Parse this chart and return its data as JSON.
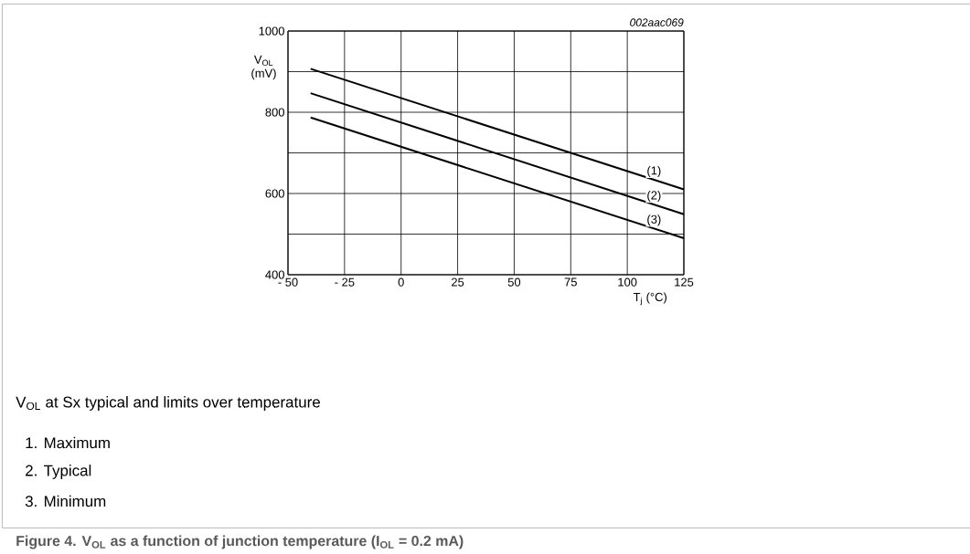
{
  "chart_data": {
    "type": "line",
    "title": "Figure 4.  V$_{OL}$ as a function of junction temperature (I$_{OL}$ = 0.2 mA)",
    "subtitle": "V$_{OL}$ at Sx typical and limits over temperature",
    "xlabel": "T$_{j}$ (°C)",
    "ylabel": "V$_{OL}$ (mV)",
    "annotations": [
      "002aac069",
      "1.  Maximum",
      "2.  Typical",
      "3.  Minimum"
    ],
    "x": [
      -40,
      125
    ],
    "series": [
      {
        "name": "(1)",
        "color": "#000000",
        "values": [
          907,
          610
        ]
      },
      {
        "name": "(2)",
        "color": "#000000",
        "values": [
          847,
          549
        ]
      },
      {
        "name": "(3)",
        "color": "#000000",
        "values": [
          787,
          490
        ]
      }
    ],
    "xlim": [
      -50,
      125
    ],
    "ylim": [
      400,
      1000
    ],
    "xticks": [
      {
        "value": -50,
        "label": "- 50"
      },
      {
        "value": -25,
        "label": "- 25"
      },
      0,
      25,
      50,
      75,
      100,
      125
    ],
    "yticks": [
      400,
      {
        "value": 500,
        "label": null
      },
      600,
      {
        "value": 700,
        "label": null
      },
      800,
      {
        "value": 900,
        "label": null
      },
      1000
    ],
    "grid": true,
    "line_style": "solid"
  }
}
